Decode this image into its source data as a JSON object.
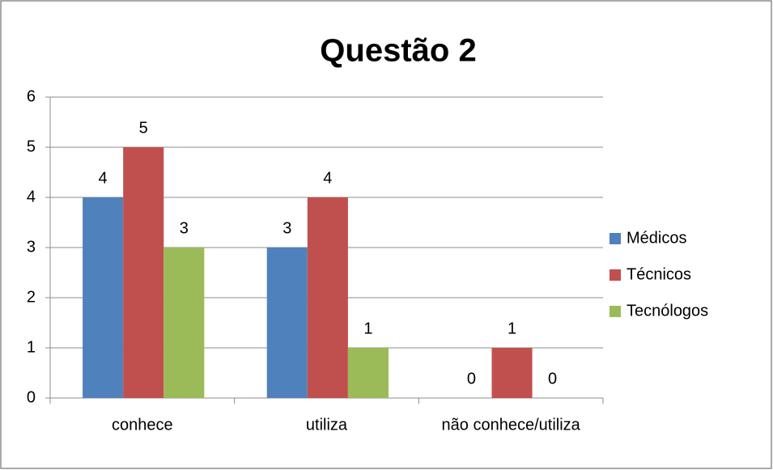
{
  "chart_data": {
    "type": "bar",
    "title": "Questão 2",
    "categories": [
      "conhece",
      "utiliza",
      "não conhece/utiliza"
    ],
    "series": [
      {
        "name": "Médicos",
        "color": "#4f81bd",
        "values": [
          4,
          3,
          0
        ]
      },
      {
        "name": "Técnicos",
        "color": "#c0504d",
        "values": [
          5,
          4,
          1
        ]
      },
      {
        "name": "Tecnólogos",
        "color": "#9bbb59",
        "values": [
          3,
          1,
          0
        ]
      }
    ],
    "ylim": [
      0,
      6
    ],
    "yticks": [
      0,
      1,
      2,
      3,
      4,
      5,
      6
    ],
    "grid": true,
    "legend": "right"
  }
}
